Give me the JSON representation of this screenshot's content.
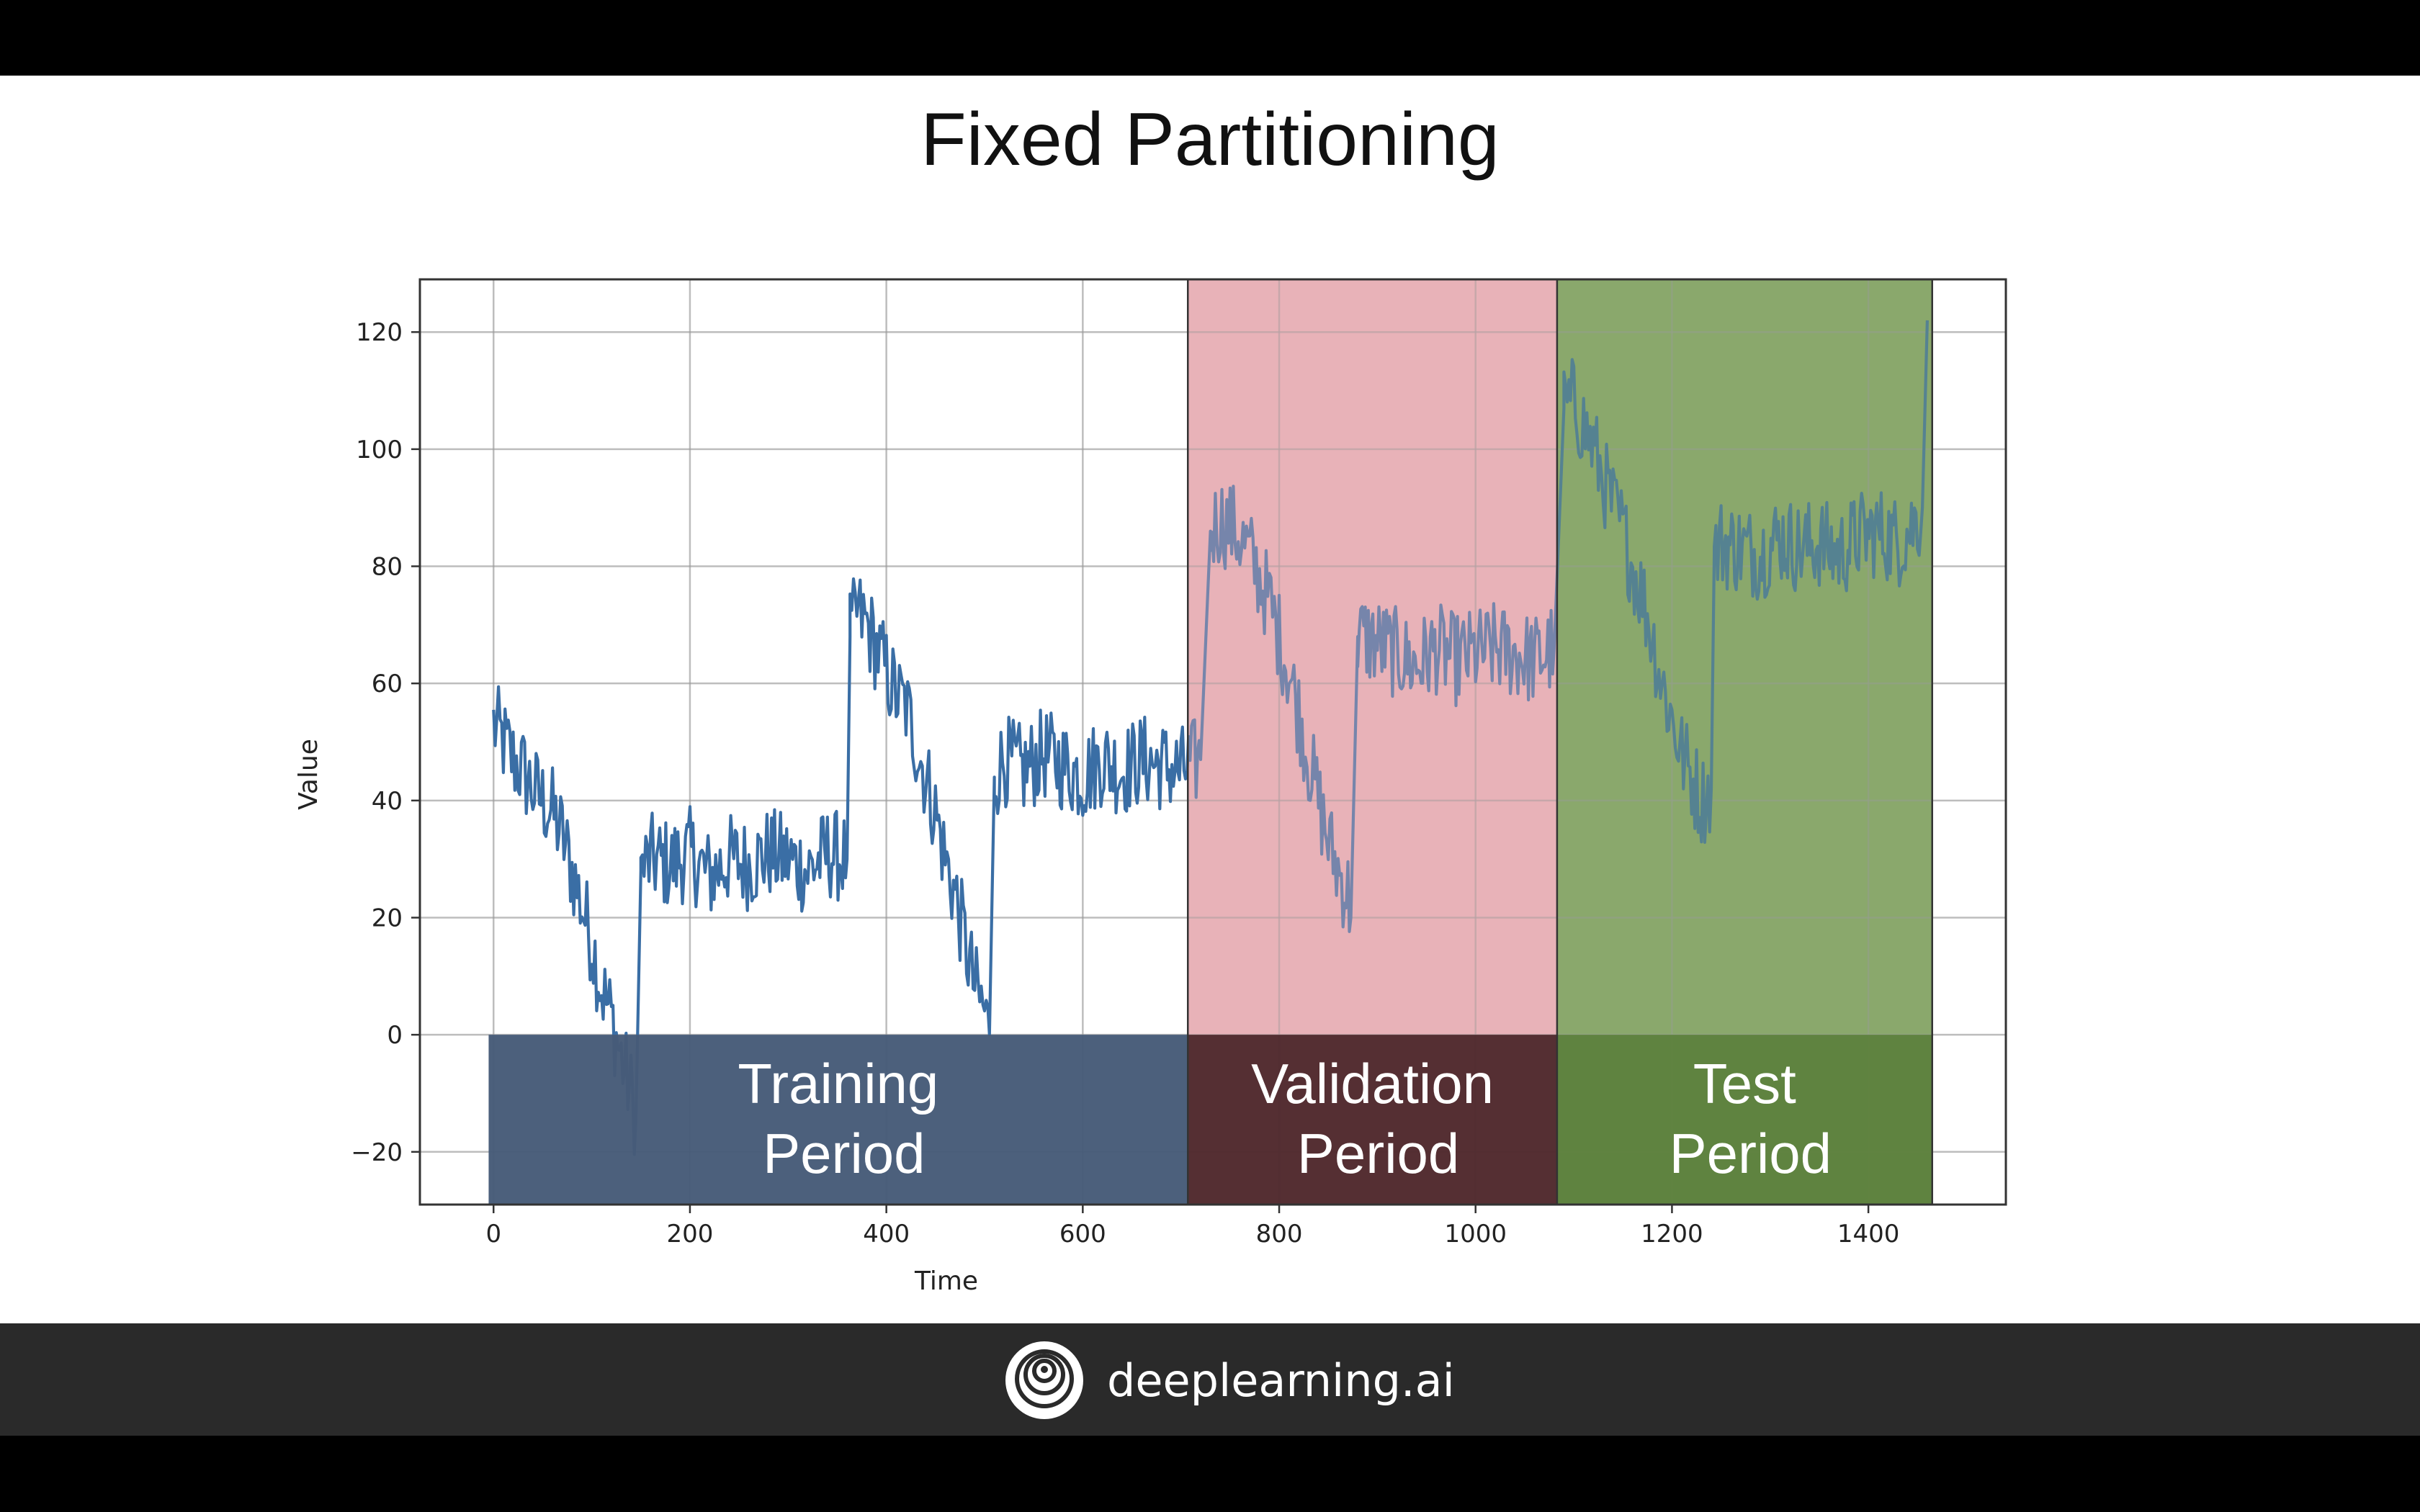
{
  "slide": {
    "title": "Fixed Partitioning"
  },
  "footer": {
    "brand": "deeplearning.ai",
    "logo_icon": "deeplearning-logo-icon"
  },
  "chart_data": {
    "type": "line",
    "xlabel": "Time",
    "ylabel": "Value",
    "xlim": [
      -75,
      1540
    ],
    "ylim": [
      -29,
      129
    ],
    "grid": true,
    "xticks": [
      0,
      200,
      400,
      600,
      800,
      1000,
      1200,
      1400
    ],
    "xtick_labels": [
      "0",
      "200",
      "400",
      "600",
      "800",
      "1000",
      "1200",
      "1400"
    ],
    "yticks": [
      -20,
      0,
      20,
      40,
      60,
      80,
      100,
      120
    ],
    "ytick_labels": [
      "−20",
      "0",
      "20",
      "40",
      "60",
      "80",
      "100",
      "120"
    ],
    "line_color": "#3a6ea5",
    "series": [
      {
        "x": [
          0,
          10,
          20,
          30,
          40,
          50,
          60,
          70,
          80,
          90,
          100,
          110,
          120,
          130,
          140,
          145,
          150,
          160,
          180,
          200,
          220,
          240,
          260,
          280,
          300,
          320,
          340,
          360,
          363,
          370,
          380,
          390,
          400,
          410,
          420,
          430,
          440,
          450,
          460,
          470,
          480,
          490,
          500,
          505,
          510,
          520,
          540,
          560,
          580,
          600,
          620,
          640,
          660,
          680,
          700,
          720,
          730,
          740,
          750,
          760,
          770,
          780,
          790,
          800,
          810,
          820,
          830,
          840,
          850,
          860,
          870,
          873,
          880,
          900,
          920,
          940,
          960,
          980,
          1000,
          1020,
          1040,
          1060,
          1080,
          1090,
          1100,
          1110,
          1120,
          1130,
          1140,
          1150,
          1160,
          1170,
          1180,
          1190,
          1200,
          1210,
          1220,
          1230,
          1240,
          1243,
          1250,
          1270,
          1290,
          1310,
          1330,
          1350,
          1370,
          1390,
          1410,
          1430,
          1450,
          1455,
          1460
        ],
        "values": [
          53,
          50,
          47,
          45,
          42,
          40,
          38,
          34,
          28,
          22,
          16,
          8,
          3,
          -4,
          -10,
          -14,
          28,
          30,
          29,
          31,
          27,
          30,
          29,
          31,
          30,
          28,
          31,
          30,
          68,
          72,
          70,
          66,
          62,
          58,
          56,
          50,
          44,
          38,
          30,
          24,
          16,
          8,
          4,
          0,
          44,
          47,
          45,
          48,
          46,
          44,
          47,
          45,
          47,
          46,
          45,
          47,
          86,
          88,
          87,
          85,
          82,
          78,
          74,
          68,
          62,
          55,
          47,
          40,
          33,
          28,
          24,
          20,
          68,
          67,
          65,
          63,
          66,
          64,
          65,
          66,
          65,
          64,
          66,
          107,
          108,
          104,
          100,
          95,
          90,
          86,
          80,
          75,
          68,
          60,
          54,
          48,
          44,
          40,
          42,
          82,
          84,
          83,
          82,
          85,
          83,
          84,
          82,
          85,
          86,
          84,
          88,
          90,
          122
        ]
      }
    ],
    "periods": [
      {
        "key": "training",
        "line1": "Training",
        "line2": "Period",
        "x_start": -5,
        "x_end": 707,
        "box_color": "#465b78",
        "shade_color": null
      },
      {
        "key": "validation",
        "line1": "Validation",
        "line2": "Period",
        "x_start": 707,
        "x_end": 1083,
        "box_color": "#4f2a2e",
        "shade_color": "#e8b2b8"
      },
      {
        "key": "test",
        "line1": "Test",
        "line2": "Period",
        "x_start": 1083,
        "x_end": 1465,
        "box_color": "#5e823f",
        "shade_color": "#8aa86c"
      }
    ],
    "label_band_ylim": [
      -29,
      0
    ]
  }
}
